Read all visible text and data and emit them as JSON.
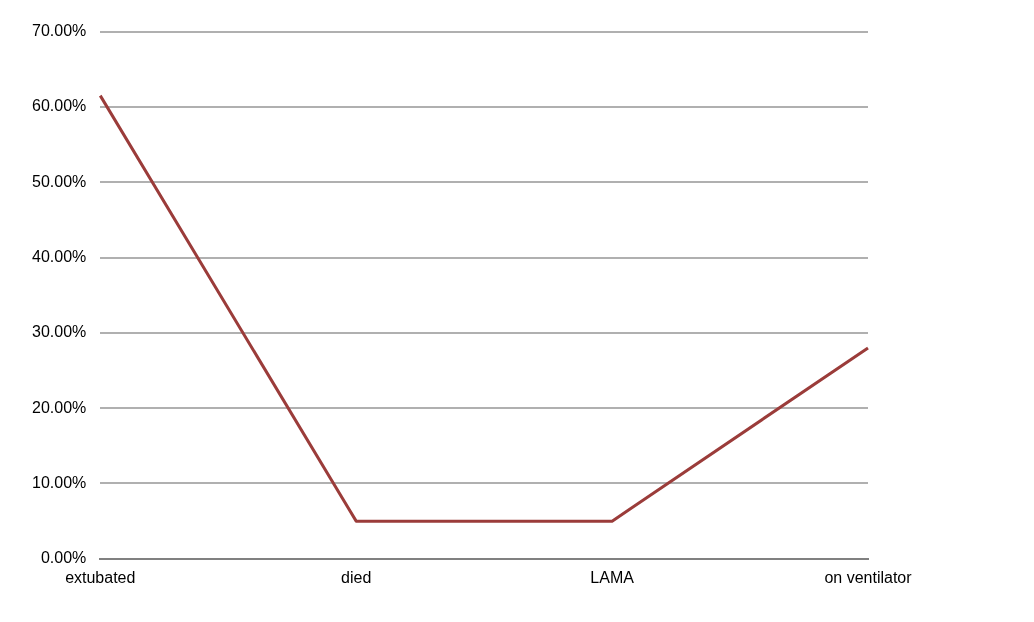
{
  "chart_data": {
    "type": "line",
    "categories": [
      "extubated",
      "died",
      "LAMA",
      "on ventilator"
    ],
    "series": [
      {
        "color": "#9b3c3a",
        "values": [
          61.5,
          5,
          5,
          28
        ]
      }
    ],
    "ylim": [
      0,
      70
    ],
    "yticks": [
      {
        "value": 0,
        "label": "0.00%"
      },
      {
        "value": 10,
        "label": "10.00%"
      },
      {
        "value": 20,
        "label": "20.00%"
      },
      {
        "value": 30,
        "label": "30.00%"
      },
      {
        "value": 40,
        "label": "40.00%"
      },
      {
        "value": 50,
        "label": "50.00%"
      },
      {
        "value": 60,
        "label": "60.00%"
      },
      {
        "value": 70,
        "label": "70.00%"
      }
    ],
    "grid": "y",
    "legend": false,
    "marker": "none",
    "line_style": "solid"
  }
}
